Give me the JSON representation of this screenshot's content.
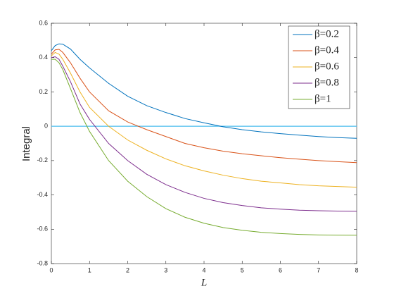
{
  "chart_data": {
    "type": "line",
    "x_label": "L",
    "y_label": "Integral",
    "x": [
      0,
      0.1,
      0.2,
      0.3,
      0.5,
      0.75,
      1,
      1.5,
      2,
      2.5,
      3,
      3.5,
      4,
      4.5,
      5,
      5.5,
      6,
      6.5,
      7,
      7.5,
      8
    ],
    "series": [
      {
        "name": "β=0.2",
        "color": "#0072BD",
        "values": [
          0.44,
          0.47,
          0.48,
          0.478,
          0.45,
          0.39,
          0.34,
          0.25,
          0.175,
          0.12,
          0.08,
          0.045,
          0.02,
          -0.003,
          -0.02,
          -0.033,
          -0.043,
          -0.052,
          -0.06,
          -0.066,
          -0.07
        ]
      },
      {
        "name": "β=0.4",
        "color": "#D95319",
        "values": [
          0.42,
          0.445,
          0.448,
          0.43,
          0.37,
          0.28,
          0.2,
          0.09,
          0.025,
          -0.02,
          -0.06,
          -0.1,
          -0.125,
          -0.145,
          -0.16,
          -0.172,
          -0.183,
          -0.192,
          -0.2,
          -0.206,
          -0.212
        ]
      },
      {
        "name": "β=0.6",
        "color": "#EDB120",
        "values": [
          0.41,
          0.43,
          0.42,
          0.39,
          0.31,
          0.2,
          0.11,
          0.0,
          -0.08,
          -0.14,
          -0.19,
          -0.23,
          -0.26,
          -0.285,
          -0.305,
          -0.32,
          -0.33,
          -0.34,
          -0.347,
          -0.351,
          -0.355
        ]
      },
      {
        "name": "β=0.8",
        "color": "#7E2F8E",
        "values": [
          0.4,
          0.405,
          0.39,
          0.35,
          0.26,
          0.13,
          0.04,
          -0.1,
          -0.2,
          -0.28,
          -0.34,
          -0.385,
          -0.42,
          -0.445,
          -0.462,
          -0.475,
          -0.483,
          -0.489,
          -0.492,
          -0.494,
          -0.495
        ]
      },
      {
        "name": "β=1",
        "color": "#77AC30",
        "values": [
          0.39,
          0.39,
          0.37,
          0.33,
          0.22,
          0.08,
          -0.03,
          -0.2,
          -0.32,
          -0.41,
          -0.48,
          -0.53,
          -0.565,
          -0.59,
          -0.606,
          -0.618,
          -0.625,
          -0.63,
          -0.633,
          -0.634,
          -0.635
        ]
      }
    ],
    "hline": {
      "value": 0,
      "color": "#4DBEEE"
    },
    "xlim": [
      0,
      8
    ],
    "ylim": [
      -0.8,
      0.6
    ],
    "xticks": [
      0,
      1,
      2,
      3,
      4,
      5,
      6,
      7,
      8
    ],
    "yticks": [
      -0.8,
      -0.6,
      -0.4,
      -0.2,
      0,
      0.2,
      0.4,
      0.6
    ],
    "legend": "top-right",
    "grid": false
  }
}
